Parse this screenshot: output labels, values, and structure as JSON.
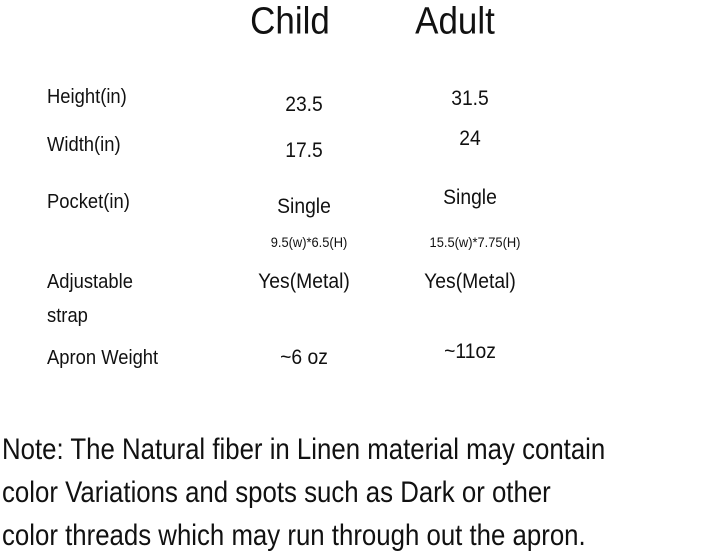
{
  "table": {
    "columns": [
      "Child",
      "Adult"
    ],
    "rows": [
      {
        "label": "Height(in)",
        "values": [
          "23.5",
          "31.5"
        ]
      },
      {
        "label": "Width(in)",
        "values": [
          "17.5",
          "24"
        ]
      },
      {
        "label": "Pocket(in)",
        "values": [
          "Single",
          "Single"
        ],
        "details": [
          "9.5(w)*6.5(H)",
          "15.5(w)*7.75(H)"
        ]
      },
      {
        "label": "Adjustable strap",
        "values": [
          "Yes(Metal)",
          "Yes(Metal)"
        ]
      },
      {
        "label": "Apron Weight",
        "values": [
          "~6 oz",
          "~11oz"
        ]
      }
    ]
  },
  "note": [
    "Note: The Natural fiber in Linen material may contain",
    "color Variations and spots such as Dark or other",
    "color threads which may run through out the apron."
  ]
}
